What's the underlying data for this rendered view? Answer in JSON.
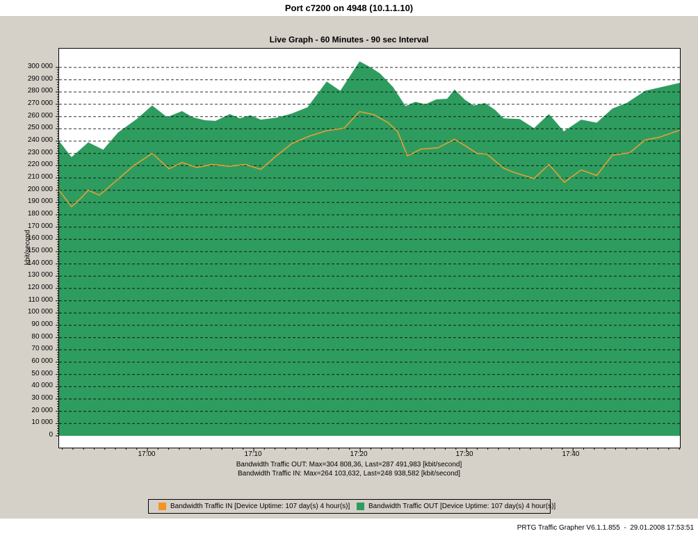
{
  "window": {
    "title": "Port c7200 on 4948 (10.1.1.10)"
  },
  "chart": {
    "title": "Live Graph - 60 Minutes - 90 sec Interval"
  },
  "summary": {
    "out_line": "Bandwidth Traffic OUT: Max=304 808,36, Last=287 491,983 [kbit/second]",
    "in_line": "Bandwidth Traffic IN: Max=264 103,632, Last=248 938,582 [kbit/second]"
  },
  "legend": {
    "items": [
      {
        "label": "Bandwidth Traffic IN [Device Uptime: 107 day(s) 4 hour(s)]",
        "color": "#f79226"
      },
      {
        "label": "Bandwidth Traffic OUT [Device Uptime: 107 day(s) 4 hour(s)]",
        "color": "#2f9c5f"
      }
    ]
  },
  "footer": {
    "credit": "PRTG Traffic Grapher V6.1.1.855  -  29.01.2008 17:53:51"
  },
  "chart_data": {
    "type": "area",
    "title": "Live Graph - 60 Minutes - 90 sec Interval",
    "ylabel": "kbit/second",
    "xlabel": "",
    "grid": "dashed-horizontal",
    "legend_position": "bottom",
    "y_axis": {
      "min": 0,
      "max": 300000,
      "major_step": 10000,
      "minor_step": 2000,
      "unit": "kbit/second"
    },
    "x_axis": {
      "window": "60 minutes, 90 sec interval, ending 17:53:51",
      "major_ticks": [
        {
          "label": "17:00",
          "t": 0.1422
        },
        {
          "label": "17:10",
          "t": 0.3136
        },
        {
          "label": "17:20",
          "t": 0.4838
        },
        {
          "label": "17:30",
          "t": 0.654
        },
        {
          "label": "17:40",
          "t": 0.8253
        }
      ],
      "minor_start_t": 0.0051,
      "minor_step_t": 0.017138
    },
    "series": [
      {
        "name": "Bandwidth Traffic IN",
        "style": "line",
        "color": "#e5a033",
        "max": "264 103,632",
        "last": "248 938,582",
        "unit": "kbit/second",
        "points": [
          [
            0.0,
            200000
          ],
          [
            0.02,
            186500
          ],
          [
            0.034,
            193000
          ],
          [
            0.047,
            200000
          ],
          [
            0.065,
            196000
          ],
          [
            0.095,
            209000
          ],
          [
            0.12,
            220000
          ],
          [
            0.15,
            230000
          ],
          [
            0.177,
            217500
          ],
          [
            0.198,
            222500
          ],
          [
            0.222,
            218500
          ],
          [
            0.246,
            221000
          ],
          [
            0.274,
            219500
          ],
          [
            0.3,
            221000
          ],
          [
            0.325,
            217000
          ],
          [
            0.35,
            228000
          ],
          [
            0.375,
            238000
          ],
          [
            0.403,
            244000
          ],
          [
            0.431,
            248500
          ],
          [
            0.459,
            250500
          ],
          [
            0.484,
            264000
          ],
          [
            0.507,
            261500
          ],
          [
            0.53,
            255000
          ],
          [
            0.545,
            248000
          ],
          [
            0.561,
            228000
          ],
          [
            0.583,
            233500
          ],
          [
            0.61,
            234500
          ],
          [
            0.637,
            241500
          ],
          [
            0.655,
            236000
          ],
          [
            0.673,
            230000
          ],
          [
            0.689,
            229500
          ],
          [
            0.716,
            218000
          ],
          [
            0.733,
            214500
          ],
          [
            0.765,
            209500
          ],
          [
            0.789,
            221000
          ],
          [
            0.814,
            206500
          ],
          [
            0.841,
            216500
          ],
          [
            0.866,
            212000
          ],
          [
            0.891,
            228500
          ],
          [
            0.919,
            230500
          ],
          [
            0.944,
            241000
          ],
          [
            0.966,
            243000
          ],
          [
            1.0,
            249000
          ]
        ]
      },
      {
        "name": "Bandwidth Traffic OUT",
        "style": "filled-area",
        "color": "#2f9c5f",
        "max": "304 808,36",
        "last": "287 491,983",
        "unit": "kbit/second",
        "points": [
          [
            0.0,
            240000
          ],
          [
            0.02,
            227000
          ],
          [
            0.047,
            239000
          ],
          [
            0.071,
            233000
          ],
          [
            0.095,
            247000
          ],
          [
            0.125,
            258000
          ],
          [
            0.15,
            269000
          ],
          [
            0.174,
            259500
          ],
          [
            0.198,
            264500
          ],
          [
            0.215,
            259500
          ],
          [
            0.235,
            257000
          ],
          [
            0.252,
            256500
          ],
          [
            0.275,
            262000
          ],
          [
            0.291,
            258500
          ],
          [
            0.308,
            261000
          ],
          [
            0.325,
            257500
          ],
          [
            0.35,
            259000
          ],
          [
            0.375,
            262500
          ],
          [
            0.4,
            267500
          ],
          [
            0.431,
            288500
          ],
          [
            0.453,
            281000
          ],
          [
            0.484,
            305000
          ],
          [
            0.502,
            300000
          ],
          [
            0.517,
            295000
          ],
          [
            0.538,
            284000
          ],
          [
            0.558,
            268500
          ],
          [
            0.574,
            272000
          ],
          [
            0.59,
            270000
          ],
          [
            0.608,
            274000
          ],
          [
            0.625,
            274500
          ],
          [
            0.637,
            282000
          ],
          [
            0.654,
            273500
          ],
          [
            0.668,
            269000
          ],
          [
            0.686,
            271000
          ],
          [
            0.702,
            265500
          ],
          [
            0.716,
            258500
          ],
          [
            0.742,
            258000
          ],
          [
            0.765,
            250500
          ],
          [
            0.789,
            262000
          ],
          [
            0.813,
            248000
          ],
          [
            0.841,
            257500
          ],
          [
            0.866,
            255000
          ],
          [
            0.891,
            266500
          ],
          [
            0.914,
            271000
          ],
          [
            0.944,
            281000
          ],
          [
            0.966,
            283500
          ],
          [
            1.0,
            287500
          ]
        ]
      }
    ]
  }
}
